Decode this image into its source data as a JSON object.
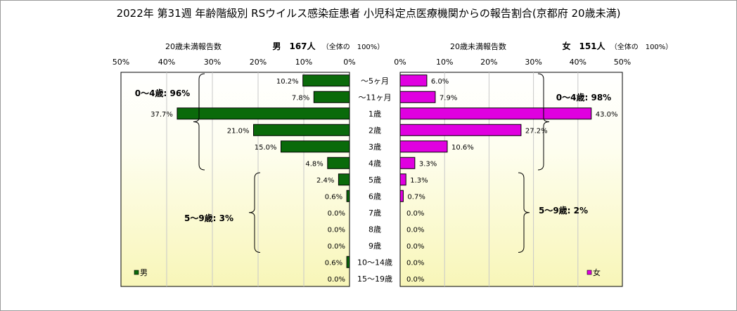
{
  "chart_data": {
    "type": "bar",
    "title": "2022年 第31週 年齢階級別 RSウイルス感染症患者 小児科定点医療機関からの報告割合(京都府 20歳未満)",
    "categories": [
      "〜5ヶ月",
      "〜11ヶ月",
      "1歳",
      "2歳",
      "3歳",
      "4歳",
      "5歳",
      "6歳",
      "7歳",
      "8歳",
      "9歳",
      "10〜14歳",
      "15〜19歳"
    ],
    "series": [
      {
        "name": "男",
        "color": "#0a6a0a",
        "values": [
          10.2,
          7.8,
          37.7,
          21.0,
          15.0,
          4.8,
          2.4,
          0.6,
          0.0,
          0.0,
          0.0,
          0.6,
          0.0
        ],
        "value_labels": [
          "10.2%",
          "7.8%",
          "37.7%",
          "21.0%",
          "15.0%",
          "4.8%",
          "2.4%",
          "0.6%",
          "0.0%",
          "0.0%",
          "0.0%",
          "0.6%",
          "0.0%"
        ],
        "axis_title": "20歳未満報告数",
        "count_label": "男　167人",
        "total_note": "（全体の　100%）",
        "legend": "男",
        "groups": [
          {
            "label": "0〜4歳: 96%",
            "from": 0,
            "to": 5
          },
          {
            "label": "5〜9歳: 3%",
            "from": 6,
            "to": 10
          }
        ]
      },
      {
        "name": "女",
        "color": "#e000e0",
        "values": [
          6.0,
          7.9,
          43.0,
          27.2,
          10.6,
          3.3,
          1.3,
          0.7,
          0.0,
          0.0,
          0.0,
          0.0,
          0.0
        ],
        "value_labels": [
          "6.0%",
          "7.9%",
          "43.0%",
          "27.2%",
          "10.6%",
          "3.3%",
          "1.3%",
          "0.7%",
          "0.0%",
          "0.0%",
          "0.0%",
          "0.0%",
          "0.0%"
        ],
        "axis_title": "20歳未満報告数",
        "count_label": "女　151人",
        "total_note": "（全体の　100%）",
        "legend": "女",
        "groups": [
          {
            "label": "0〜4歳: 98%",
            "from": 0,
            "to": 5
          },
          {
            "label": "5〜9歳: 2%",
            "from": 6,
            "to": 10
          }
        ]
      }
    ],
    "xlim": [
      0,
      50
    ],
    "ticks": [
      0,
      10,
      20,
      30,
      40,
      50
    ],
    "tick_labels": [
      "0%",
      "10%",
      "20%",
      "30%",
      "40%",
      "50%"
    ],
    "grid": true,
    "background": "gradient white-to-pale-yellow"
  }
}
